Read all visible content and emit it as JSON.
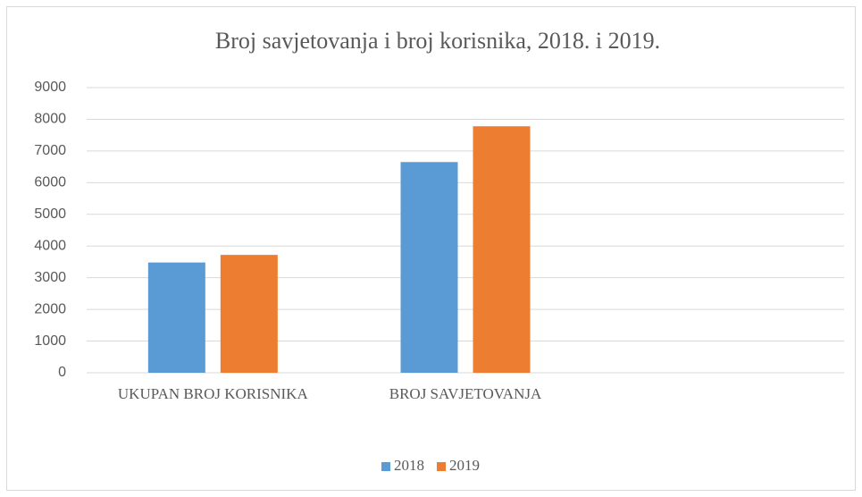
{
  "chart_data": {
    "type": "bar",
    "title": "Broj savjetovanja i broj korisnika, 2018. i 2019.",
    "categories": [
      "UKUPAN BROJ KORISNIKA",
      "BROJ SAVJETOVANJA",
      null
    ],
    "series": [
      {
        "name": "2018",
        "color": "#5b9bd5",
        "values": [
          3480,
          6650,
          null
        ]
      },
      {
        "name": "2019",
        "color": "#ed7d31",
        "values": [
          3720,
          7780,
          null
        ]
      }
    ],
    "ylim": [
      0,
      9000
    ],
    "yticks": [
      0,
      1000,
      2000,
      3000,
      4000,
      5000,
      6000,
      7000,
      8000,
      9000
    ],
    "grid": true,
    "legend": "bottom"
  }
}
